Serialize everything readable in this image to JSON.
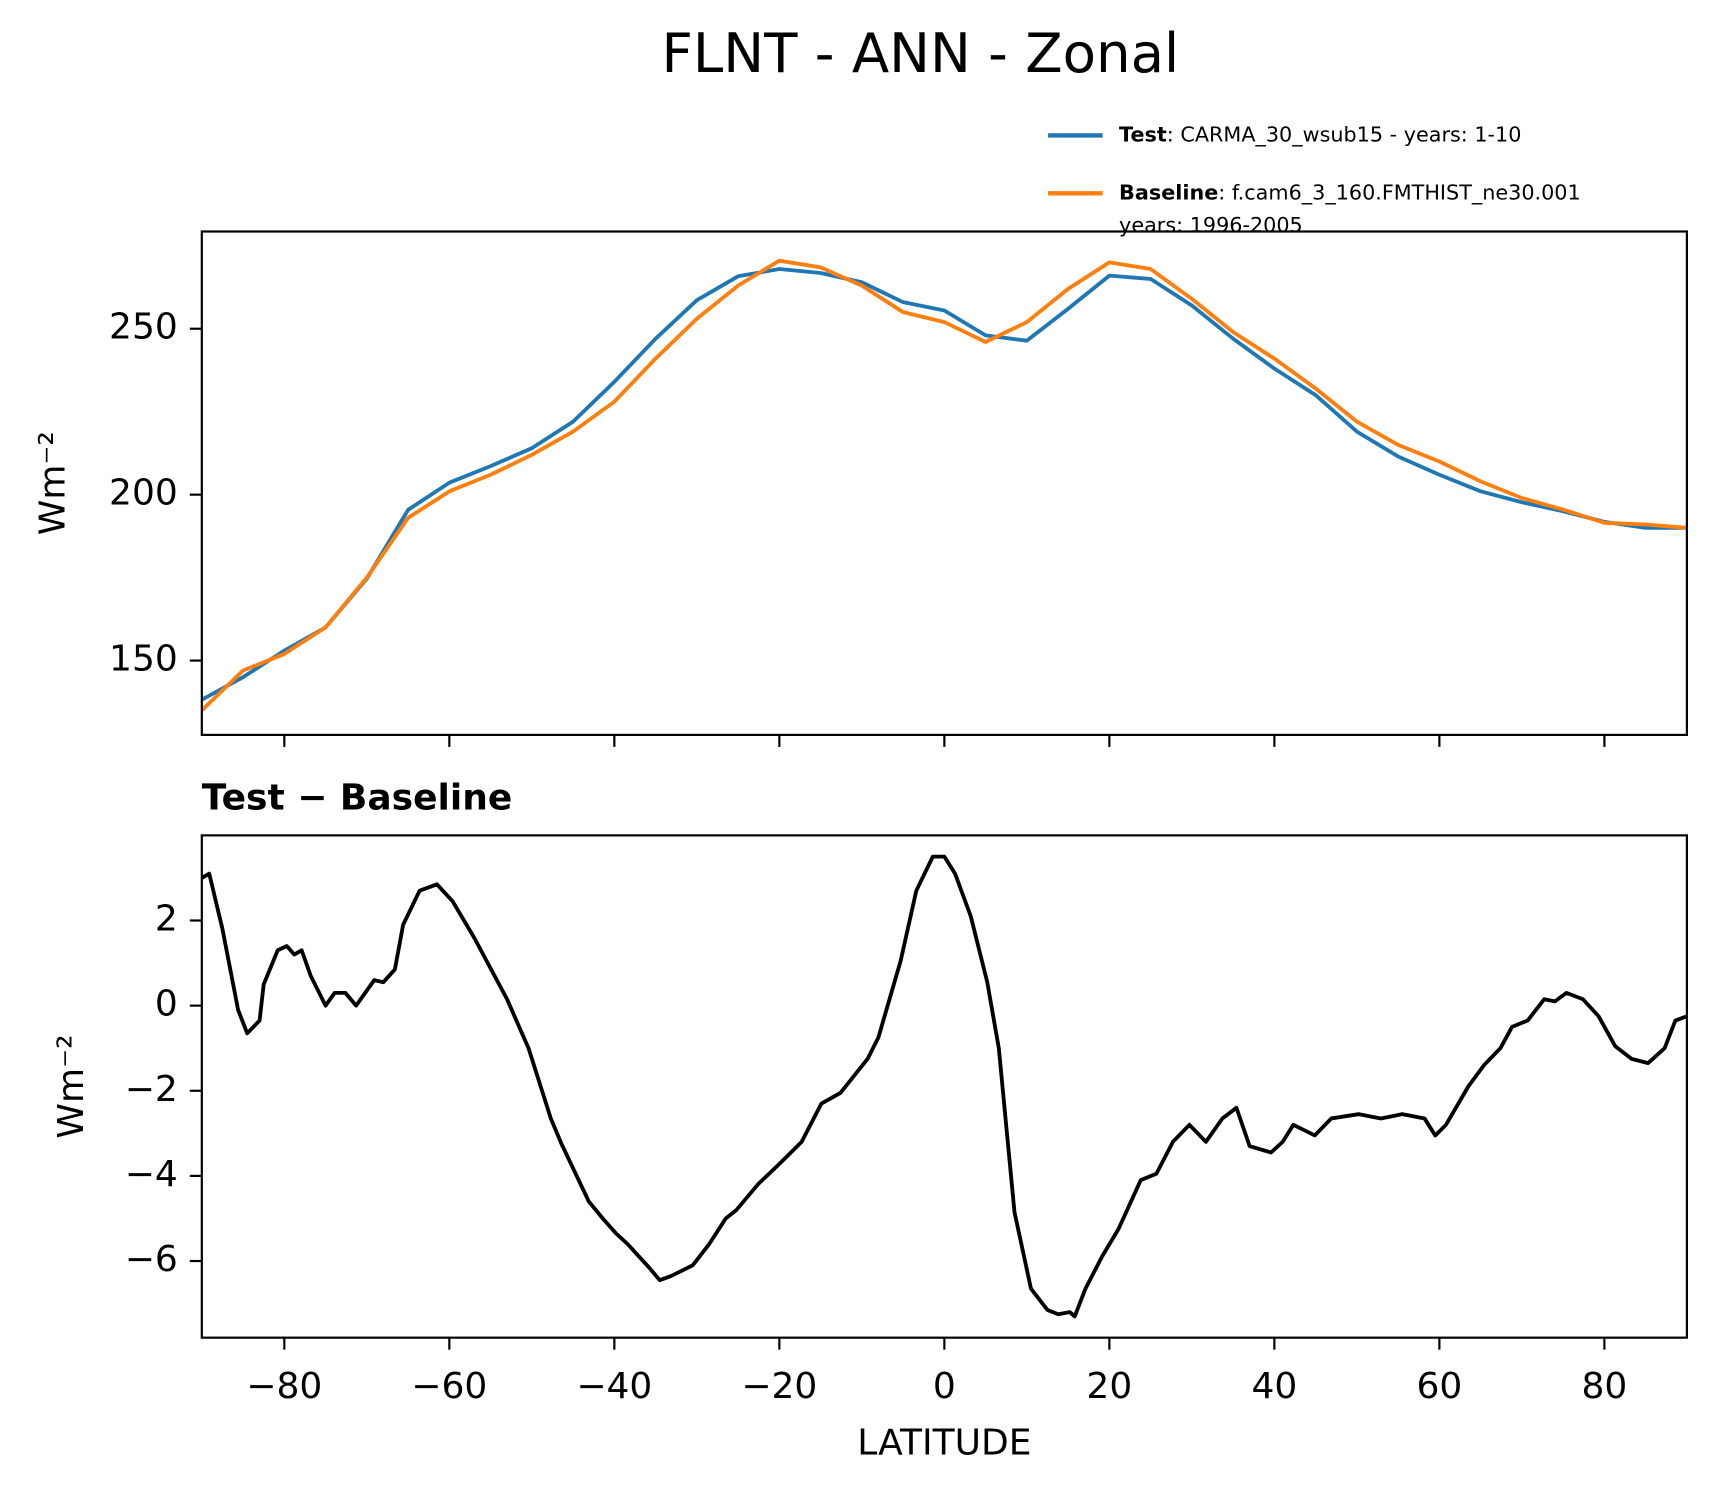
{
  "title": "FLNT - ANN - Zonal",
  "chart_data": [
    {
      "type": "line",
      "ylabel": "Wm⁻²",
      "x": [
        -90,
        -85,
        -80,
        -75,
        -70,
        -65,
        -60,
        -55,
        -50,
        -45,
        -40,
        -35,
        -30,
        -25,
        -20,
        -15,
        -10,
        -5,
        0,
        5,
        10,
        15,
        20,
        25,
        30,
        35,
        40,
        45,
        50,
        55,
        60,
        65,
        70,
        75,
        80,
        85,
        90
      ],
      "series": [
        {
          "name": "Test",
          "label_lines": [
            ": CARMA_30_wsub15 - years: 1-10"
          ],
          "color": "#1f77b4",
          "values": [
            138.2,
            145,
            153,
            160,
            174.7,
            195.4,
            203.6,
            208.6,
            214,
            222,
            234,
            247,
            258.6,
            265.8,
            268,
            266.8,
            264,
            258,
            255.5,
            248,
            246.4,
            256,
            266,
            265,
            257,
            247,
            238,
            230,
            219,
            211.5,
            206,
            201,
            197.7,
            195,
            191.8,
            190,
            190
          ]
        },
        {
          "name": "Baseline",
          "label_lines": [
            ": f.cam6_3_160.FMTHIST_ne30.001",
            "years: 1996-2005"
          ],
          "color": "#ff7f0e",
          "values": [
            135,
            147,
            152,
            160,
            175,
            193,
            201,
            206,
            212,
            219,
            228,
            241,
            253,
            263,
            270.5,
            268.5,
            263,
            255,
            252,
            246,
            252,
            262,
            270,
            268,
            259,
            249,
            241,
            232,
            222,
            215,
            210,
            204,
            199,
            195.5,
            191.5,
            191,
            190
          ]
        }
      ],
      "xlim": [
        -90,
        90
      ],
      "xticks": [
        -80,
        -60,
        -40,
        -20,
        0,
        20,
        40,
        60,
        80
      ],
      "show_xticklabels": false,
      "ylim": [
        127.6,
        279.3
      ],
      "yticks": [
        150,
        200,
        250
      ]
    },
    {
      "type": "line",
      "title": "Test − Baseline",
      "ylabel": "Wm⁻²",
      "xlabel": "LATITUDE",
      "x": [
        -90,
        -89.1,
        -87.5,
        -85.6,
        -84.5,
        -83.0,
        -82.5,
        -80.8,
        -79.7,
        -78.8,
        -77.9,
        -76.8,
        -75.0,
        -73.9,
        -72.6,
        -71.3,
        -69.1,
        -68.0,
        -66.6,
        -65.6,
        -63.6,
        -61.5,
        -59.6,
        -57.0,
        -53.0,
        -50.4,
        -47.7,
        -46.4,
        -43.1,
        -41.4,
        -39.8,
        -38.4,
        -35.8,
        -34.5,
        -33.1,
        -30.5,
        -28.5,
        -26.5,
        -25.2,
        -22.6,
        -19.9,
        -17.3,
        -14.9,
        -12.6,
        -9.3,
        -8.0,
        -5.3,
        -3.4,
        -1.4,
        0,
        1.3,
        3.2,
        5.2,
        6.6,
        8.5,
        10.5,
        12.5,
        13.8,
        15.2,
        15.8,
        17.1,
        19.1,
        21.1,
        23.8,
        25.7,
        27.7,
        29.7,
        31.7,
        33.7,
        35.4,
        37.0,
        39.6,
        41.0,
        42.3,
        44.9,
        46.9,
        50.2,
        52.9,
        55.5,
        58.2,
        59.5,
        60.8,
        63.5,
        65.4,
        67.4,
        68.8,
        70.7,
        72.7,
        74.0,
        75.4,
        77.4,
        79.3,
        81.3,
        83.3,
        85.3,
        87.3,
        88.6,
        90
      ],
      "series": [
        {
          "color": "#000000",
          "values": [
            3.0,
            3.1,
            1.8,
            -0.1,
            -0.65,
            -0.35,
            0.5,
            1.3,
            1.4,
            1.2,
            1.3,
            0.7,
            0,
            0.3,
            0.3,
            0,
            0.6,
            0.55,
            0.85,
            1.9,
            2.7,
            2.85,
            2.45,
            1.6,
            0.15,
            -1,
            -2.65,
            -3.25,
            -4.6,
            -5,
            -5.35,
            -5.6,
            -6.15,
            -6.45,
            -6.35,
            -6.1,
            -5.6,
            -5,
            -4.8,
            -4.2,
            -3.7,
            -3.2,
            -2.3,
            -2.05,
            -1.25,
            -0.75,
            1.05,
            2.7,
            3.5,
            3.5,
            3.1,
            2.1,
            0.55,
            -1,
            -4.85,
            -6.65,
            -7.15,
            -7.25,
            -7.2,
            -7.3,
            -6.65,
            -5.9,
            -5.25,
            -4.1,
            -3.95,
            -3.2,
            -2.8,
            -3.2,
            -2.65,
            -2.4,
            -3.3,
            -3.45,
            -3.2,
            -2.8,
            -3.05,
            -2.65,
            -2.55,
            -2.65,
            -2.55,
            -2.65,
            -3.05,
            -2.8,
            -1.9,
            -1.4,
            -1,
            -0.5,
            -0.35,
            0.15,
            0.1,
            0.3,
            0.15,
            -0.25,
            -0.95,
            -1.25,
            -1.35,
            -1,
            -0.35,
            -0.25
          ]
        }
      ],
      "xlim": [
        -90,
        90
      ],
      "xticks": [
        {
          "value": -80,
          "label": "−80"
        },
        {
          "value": -60,
          "label": "−60"
        },
        {
          "value": -40,
          "label": "−40"
        },
        {
          "value": -20,
          "label": "−20"
        },
        0,
        20,
        40,
        60,
        80
      ],
      "ylim": [
        -7.8,
        4.0
      ],
      "yticks": [
        {
          "value": -6,
          "label": "−6"
        },
        {
          "value": -4,
          "label": "−4"
        },
        {
          "value": -2,
          "label": "−2"
        },
        0,
        2
      ]
    }
  ]
}
